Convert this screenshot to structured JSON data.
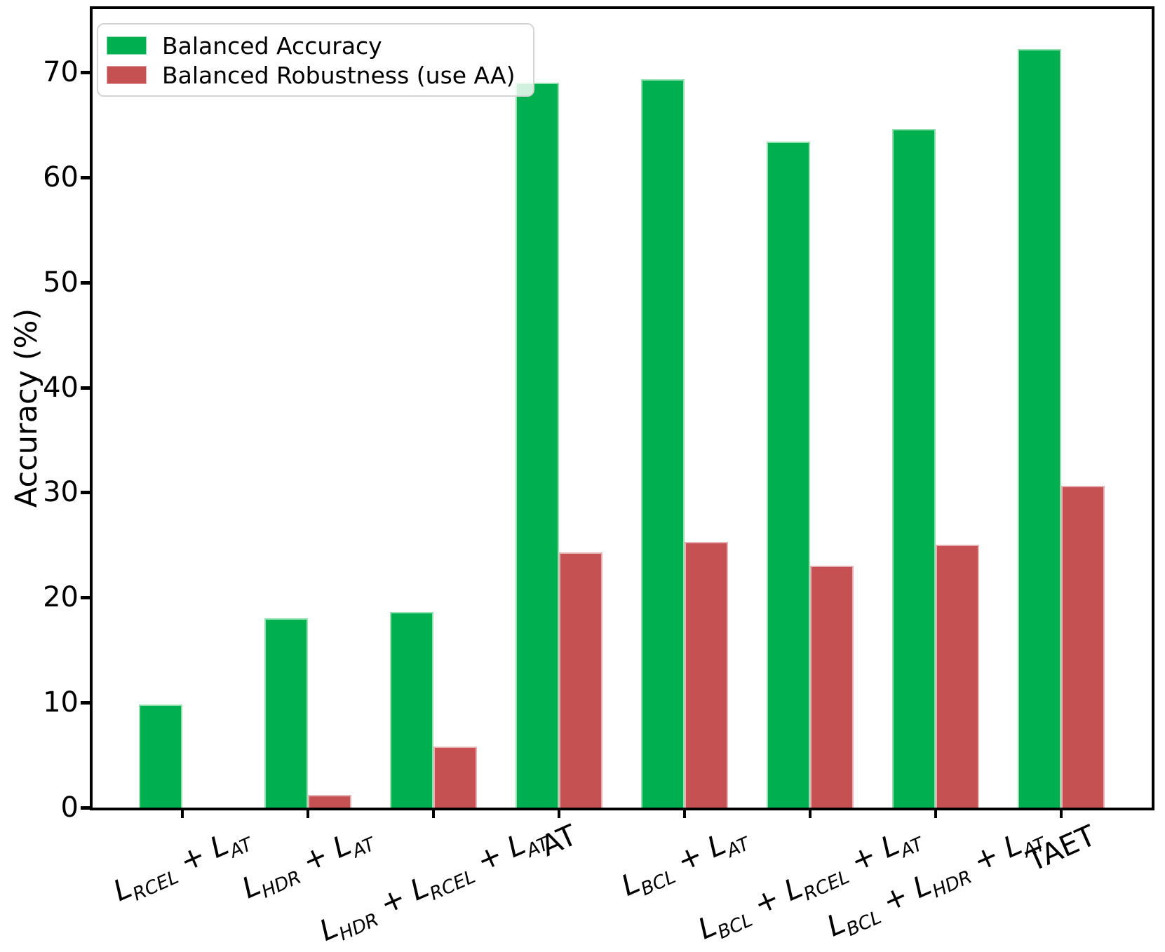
{
  "chart_data": {
    "type": "bar",
    "title": "",
    "xlabel": "",
    "ylabel": "Accuracy (%)",
    "ylim": [
      0,
      76
    ],
    "yticks": [
      0,
      10,
      20,
      30,
      40,
      50,
      60,
      70
    ],
    "grid": false,
    "legend_position": "upper left",
    "x_tick_rotation_deg": 24,
    "categories": [
      "L_{RCEL} + L_{AT}",
      "L_{HDR} + L_{AT}",
      "L_{HDR} + L_{RCEL} + L_{AT}",
      "AT",
      "L_{BCL} + L_{AT}",
      "L_{BCL} + L_{RCEL} + L_{AT}",
      "L_{BCL} + L_{HDR} + L_{AT}",
      "TAET"
    ],
    "series": [
      {
        "name": "Balanced Accuracy",
        "color": "#00b050",
        "edge_color": "#93dfae",
        "values": [
          9.8,
          18.0,
          18.6,
          69.0,
          69.3,
          63.4,
          64.6,
          72.2
        ]
      },
      {
        "name": "Balanced Robustness (use AA)",
        "color": "#c55152",
        "edge_color": "#e7b2b6",
        "values": [
          0.0,
          1.2,
          5.8,
          24.3,
          25.3,
          23.0,
          25.0,
          30.6
        ]
      }
    ]
  }
}
